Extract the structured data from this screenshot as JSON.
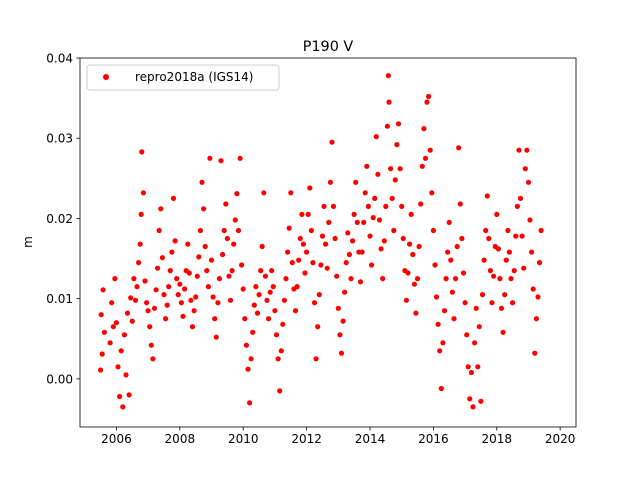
{
  "chart_data": {
    "type": "scatter",
    "title": "P190 V",
    "xlabel": "",
    "ylabel": "m",
    "xlim": [
      2004.85,
      2020.5
    ],
    "ylim": [
      -0.006,
      0.04
    ],
    "grid": false,
    "legend_position": "top-left",
    "x_ticks": [
      2006,
      2008,
      2010,
      2012,
      2014,
      2016,
      2018,
      2020
    ],
    "x_tick_labels": [
      "2006",
      "2008",
      "2010",
      "2012",
      "2014",
      "2016",
      "2018",
      "2020"
    ],
    "y_ticks": [
      0.0,
      0.01,
      0.02,
      0.03,
      0.04
    ],
    "y_tick_labels": [
      "0.00",
      "0.01",
      "0.02",
      "0.03",
      "0.04"
    ],
    "series": [
      {
        "name": "repro2018a (IGS14)",
        "color": "#ff0000",
        "marker": "circle",
        "points": [
          [
            2005.5,
            0.0011
          ],
          [
            2005.52,
            0.008
          ],
          [
            2005.55,
            0.0031
          ],
          [
            2005.58,
            0.0111
          ],
          [
            2005.62,
            0.0058
          ],
          [
            2005.8,
            0.0045
          ],
          [
            2005.85,
            0.0095
          ],
          [
            2005.9,
            0.0065
          ],
          [
            2005.95,
            0.0125
          ],
          [
            2006.0,
            0.007
          ],
          [
            2006.05,
            0.0015
          ],
          [
            2006.1,
            -0.0022
          ],
          [
            2006.15,
            0.0035
          ],
          [
            2006.2,
            -0.0035
          ],
          [
            2006.25,
            0.0055
          ],
          [
            2006.3,
            0.0005
          ],
          [
            2006.35,
            0.0082
          ],
          [
            2006.4,
            -0.002
          ],
          [
            2006.45,
            0.0101
          ],
          [
            2006.5,
            0.0072
          ],
          [
            2006.55,
            0.0125
          ],
          [
            2006.6,
            0.0098
          ],
          [
            2006.65,
            0.0115
          ],
          [
            2006.7,
            0.0145
          ],
          [
            2006.75,
            0.0168
          ],
          [
            2006.78,
            0.0205
          ],
          [
            2006.8,
            0.0283
          ],
          [
            2006.85,
            0.0232
          ],
          [
            2006.9,
            0.0122
          ],
          [
            2006.95,
            0.0095
          ],
          [
            2007.0,
            0.0085
          ],
          [
            2007.05,
            0.0065
          ],
          [
            2007.1,
            0.0042
          ],
          [
            2007.15,
            0.0025
          ],
          [
            2007.2,
            0.0088
          ],
          [
            2007.25,
            0.0111
          ],
          [
            2007.3,
            0.0138
          ],
          [
            2007.35,
            0.0185
          ],
          [
            2007.4,
            0.0212
          ],
          [
            2007.45,
            0.0151
          ],
          [
            2007.5,
            0.0105
          ],
          [
            2007.55,
            0.0075
          ],
          [
            2007.6,
            0.0092
          ],
          [
            2007.65,
            0.0115
          ],
          [
            2007.7,
            0.0135
          ],
          [
            2007.75,
            0.0158
          ],
          [
            2007.8,
            0.0225
          ],
          [
            2007.85,
            0.0172
          ],
          [
            2007.9,
            0.0125
          ],
          [
            2007.95,
            0.0105
          ],
          [
            2008.0,
            0.0118
          ],
          [
            2008.05,
            0.0095
          ],
          [
            2008.1,
            0.0078
          ],
          [
            2008.15,
            0.0112
          ],
          [
            2008.2,
            0.0135
          ],
          [
            2008.25,
            0.0168
          ],
          [
            2008.3,
            0.0132
          ],
          [
            2008.35,
            0.0098
          ],
          [
            2008.4,
            0.0065
          ],
          [
            2008.45,
            0.0085
          ],
          [
            2008.5,
            0.0102
          ],
          [
            2008.55,
            0.0128
          ],
          [
            2008.6,
            0.0152
          ],
          [
            2008.65,
            0.0185
          ],
          [
            2008.7,
            0.0245
          ],
          [
            2008.75,
            0.0212
          ],
          [
            2008.8,
            0.0165
          ],
          [
            2008.85,
            0.0135
          ],
          [
            2008.9,
            0.0115
          ],
          [
            2008.95,
            0.0275
          ],
          [
            2009.0,
            0.0148
          ],
          [
            2009.05,
            0.0102
          ],
          [
            2009.1,
            0.0075
          ],
          [
            2009.15,
            0.0052
          ],
          [
            2009.2,
            0.0095
          ],
          [
            2009.25,
            0.0125
          ],
          [
            2009.3,
            0.0272
          ],
          [
            2009.35,
            0.0155
          ],
          [
            2009.4,
            0.0185
          ],
          [
            2009.45,
            0.0218
          ],
          [
            2009.5,
            0.0175
          ],
          [
            2009.55,
            0.0128
          ],
          [
            2009.6,
            0.0098
          ],
          [
            2009.65,
            0.0135
          ],
          [
            2009.7,
            0.0168
          ],
          [
            2009.75,
            0.0198
          ],
          [
            2009.8,
            0.0231
          ],
          [
            2009.85,
            0.0185
          ],
          [
            2009.9,
            0.0275
          ],
          [
            2009.95,
            0.0142
          ],
          [
            2010.0,
            0.0112
          ],
          [
            2010.05,
            0.0075
          ],
          [
            2010.1,
            0.0042
          ],
          [
            2010.15,
            0.0012
          ],
          [
            2010.2,
            -0.003
          ],
          [
            2010.25,
            0.0025
          ],
          [
            2010.3,
            0.0058
          ],
          [
            2010.35,
            0.0092
          ],
          [
            2010.4,
            0.0115
          ],
          [
            2010.45,
            0.0082
          ],
          [
            2010.5,
            0.0105
          ],
          [
            2010.55,
            0.0135
          ],
          [
            2010.6,
            0.0165
          ],
          [
            2010.65,
            0.0232
          ],
          [
            2010.7,
            0.0128
          ],
          [
            2010.75,
            0.0098
          ],
          [
            2010.8,
            0.0075
          ],
          [
            2010.85,
            0.0108
          ],
          [
            2010.9,
            0.0135
          ],
          [
            2010.95,
            0.0115
          ],
          [
            2011.0,
            0.0085
          ],
          [
            2011.05,
            0.0055
          ],
          [
            2011.1,
            0.0025
          ],
          [
            2011.15,
            -0.0015
          ],
          [
            2011.2,
            0.0035
          ],
          [
            2011.25,
            0.0068
          ],
          [
            2011.3,
            0.0098
          ],
          [
            2011.35,
            0.0125
          ],
          [
            2011.4,
            0.0158
          ],
          [
            2011.45,
            0.0188
          ],
          [
            2011.5,
            0.0232
          ],
          [
            2011.55,
            0.0145
          ],
          [
            2011.6,
            0.0112
          ],
          [
            2011.65,
            0.0085
          ],
          [
            2011.7,
            0.0115
          ],
          [
            2011.75,
            0.0148
          ],
          [
            2011.8,
            0.0175
          ],
          [
            2011.85,
            0.0205
          ],
          [
            2011.9,
            0.0168
          ],
          [
            2011.95,
            0.0132
          ],
          [
            2012.0,
            0.0158
          ],
          [
            2012.05,
            0.0205
          ],
          [
            2012.1,
            0.0238
          ],
          [
            2012.15,
            0.0185
          ],
          [
            2012.2,
            0.0145
          ],
          [
            2012.25,
            0.0095
          ],
          [
            2012.3,
            0.0025
          ],
          [
            2012.35,
            0.0065
          ],
          [
            2012.4,
            0.0105
          ],
          [
            2012.45,
            0.0142
          ],
          [
            2012.5,
            0.0178
          ],
          [
            2012.55,
            0.0215
          ],
          [
            2012.6,
            0.0168
          ],
          [
            2012.65,
            0.0138
          ],
          [
            2012.7,
            0.0195
          ],
          [
            2012.75,
            0.0245
          ],
          [
            2012.8,
            0.0295
          ],
          [
            2012.85,
            0.0215
          ],
          [
            2012.9,
            0.0175
          ],
          [
            2012.95,
            0.0128
          ],
          [
            2013.0,
            0.0088
          ],
          [
            2013.05,
            0.0055
          ],
          [
            2013.1,
            0.0032
          ],
          [
            2013.15,
            0.0072
          ],
          [
            2013.2,
            0.0108
          ],
          [
            2013.25,
            0.0145
          ],
          [
            2013.3,
            0.0182
          ],
          [
            2013.35,
            0.0155
          ],
          [
            2013.4,
            0.0125
          ],
          [
            2013.45,
            0.0172
          ],
          [
            2013.5,
            0.0205
          ],
          [
            2013.55,
            0.0245
          ],
          [
            2013.6,
            0.0195
          ],
          [
            2013.65,
            0.0158
          ],
          [
            2013.7,
            0.0121
          ],
          [
            2013.75,
            0.0158
          ],
          [
            2013.8,
            0.0195
          ],
          [
            2013.85,
            0.0232
          ],
          [
            2013.9,
            0.0265
          ],
          [
            2013.95,
            0.0215
          ],
          [
            2014.0,
            0.0178
          ],
          [
            2014.05,
            0.0142
          ],
          [
            2014.1,
            0.0201
          ],
          [
            2014.15,
            0.0225
          ],
          [
            2014.2,
            0.0302
          ],
          [
            2014.25,
            0.0255
          ],
          [
            2014.3,
            0.0198
          ],
          [
            2014.35,
            0.0162
          ],
          [
            2014.4,
            0.0125
          ],
          [
            2014.45,
            0.0172
          ],
          [
            2014.5,
            0.0215
          ],
          [
            2014.55,
            0.0315
          ],
          [
            2014.58,
            0.0378
          ],
          [
            2014.6,
            0.0345
          ],
          [
            2014.65,
            0.0262
          ],
          [
            2014.7,
            0.0225
          ],
          [
            2014.75,
            0.0185
          ],
          [
            2014.8,
            0.0248
          ],
          [
            2014.85,
            0.0292
          ],
          [
            2014.9,
            0.0318
          ],
          [
            2014.95,
            0.0262
          ],
          [
            2015.0,
            0.0215
          ],
          [
            2015.05,
            0.0175
          ],
          [
            2015.1,
            0.0135
          ],
          [
            2015.15,
            0.0098
          ],
          [
            2015.2,
            0.0132
          ],
          [
            2015.25,
            0.0168
          ],
          [
            2015.3,
            0.0205
          ],
          [
            2015.35,
            0.0155
          ],
          [
            2015.4,
            0.0118
          ],
          [
            2015.45,
            0.0082
          ],
          [
            2015.5,
            0.0125
          ],
          [
            2015.55,
            0.0165
          ],
          [
            2015.6,
            0.0218
          ],
          [
            2015.65,
            0.0265
          ],
          [
            2015.7,
            0.0312
          ],
          [
            2015.75,
            0.0275
          ],
          [
            2015.8,
            0.0345
          ],
          [
            2015.85,
            0.0352
          ],
          [
            2015.9,
            0.0285
          ],
          [
            2015.95,
            0.0232
          ],
          [
            2016.0,
            0.0185
          ],
          [
            2016.05,
            0.0142
          ],
          [
            2016.1,
            0.0102
          ],
          [
            2016.15,
            0.0068
          ],
          [
            2016.2,
            0.0035
          ],
          [
            2016.25,
            -0.0012
          ],
          [
            2016.3,
            0.0045
          ],
          [
            2016.35,
            0.0085
          ],
          [
            2016.4,
            0.0125
          ],
          [
            2016.45,
            0.0158
          ],
          [
            2016.5,
            0.0195
          ],
          [
            2016.55,
            0.0148
          ],
          [
            2016.6,
            0.0108
          ],
          [
            2016.65,
            0.0075
          ],
          [
            2016.7,
            0.0125
          ],
          [
            2016.75,
            0.0165
          ],
          [
            2016.8,
            0.0288
          ],
          [
            2016.85,
            0.0218
          ],
          [
            2016.9,
            0.0175
          ],
          [
            2016.95,
            0.0132
          ],
          [
            2017.0,
            0.0095
          ],
          [
            2017.05,
            0.0055
          ],
          [
            2017.1,
            0.0015
          ],
          [
            2017.15,
            -0.0025
          ],
          [
            2017.2,
            0.0008
          ],
          [
            2017.25,
            -0.0035
          ],
          [
            2017.3,
            0.0045
          ],
          [
            2017.35,
            0.0088
          ],
          [
            2017.4,
            0.0015
          ],
          [
            2017.45,
            0.0065
          ],
          [
            2017.5,
            -0.0028
          ],
          [
            2017.55,
            0.0105
          ],
          [
            2017.6,
            0.0148
          ],
          [
            2017.65,
            0.0185
          ],
          [
            2017.7,
            0.0228
          ],
          [
            2017.75,
            0.0175
          ],
          [
            2017.8,
            0.0135
          ],
          [
            2017.85,
            0.0095
          ],
          [
            2017.9,
            0.0128
          ],
          [
            2017.95,
            0.0165
          ],
          [
            2018.0,
            0.0205
          ],
          [
            2018.05,
            0.0162
          ],
          [
            2018.1,
            0.0125
          ],
          [
            2018.15,
            0.0088
          ],
          [
            2018.2,
            0.0058
          ],
          [
            2018.25,
            0.0105
          ],
          [
            2018.3,
            0.0148
          ],
          [
            2018.35,
            0.0185
          ],
          [
            2018.4,
            0.0158
          ],
          [
            2018.45,
            0.0125
          ],
          [
            2018.5,
            0.0095
          ],
          [
            2018.55,
            0.0135
          ],
          [
            2018.6,
            0.0178
          ],
          [
            2018.65,
            0.0215
          ],
          [
            2018.7,
            0.0285
          ],
          [
            2018.75,
            0.0225
          ],
          [
            2018.8,
            0.0178
          ],
          [
            2018.85,
            0.0138
          ],
          [
            2018.9,
            0.0262
          ],
          [
            2018.95,
            0.0285
          ],
          [
            2019.0,
            0.0245
          ],
          [
            2019.05,
            0.0198
          ],
          [
            2019.1,
            0.0158
          ],
          [
            2019.15,
            0.0112
          ],
          [
            2019.2,
            0.0032
          ],
          [
            2019.25,
            0.0075
          ],
          [
            2019.3,
            0.0102
          ],
          [
            2019.35,
            0.0145
          ],
          [
            2019.4,
            0.0185
          ]
        ]
      }
    ]
  }
}
